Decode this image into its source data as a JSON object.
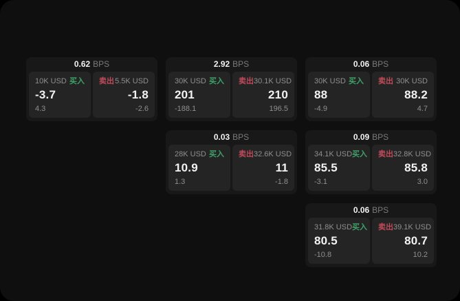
{
  "theme": {
    "window_bg": "#0f0f0f",
    "card_bg": "#181818",
    "panel_bg": "#242424",
    "text_primary": "#f2f2f2",
    "text_muted": "#8f8f8f",
    "text_faint": "#7a7a7a",
    "buy_color": "#3fa068",
    "sell_color": "#bf4b5a"
  },
  "labels": {
    "bps_suffix": "BPS",
    "buy": "买入",
    "sell": "卖出"
  },
  "cards": [
    {
      "bps": "0.62",
      "row": 1,
      "col": 1,
      "buy": {
        "size": "10K USD",
        "value": "-3.7",
        "delta": "4.3"
      },
      "sell": {
        "size": "5.5K USD",
        "value": "-1.8",
        "delta": "-2.6"
      }
    },
    {
      "bps": "2.92",
      "row": 1,
      "col": 2,
      "buy": {
        "size": "30K USD",
        "value": "201",
        "delta": "-188.1"
      },
      "sell": {
        "size": "30.1K USD",
        "value": "210",
        "delta": "196.5"
      }
    },
    {
      "bps": "0.06",
      "row": 1,
      "col": 3,
      "buy": {
        "size": "30K USD",
        "value": "88",
        "delta": "-4.9"
      },
      "sell": {
        "size": "30K USD",
        "value": "88.2",
        "delta": "4.7"
      }
    },
    {
      "bps": "0.03",
      "row": 2,
      "col": 2,
      "buy": {
        "size": "28K USD",
        "value": "10.9",
        "delta": "1.3"
      },
      "sell": {
        "size": "32.6K USD",
        "value": "11",
        "delta": "-1.8"
      }
    },
    {
      "bps": "0.09",
      "row": 2,
      "col": 3,
      "buy": {
        "size": "34.1K USD",
        "value": "85.5",
        "delta": "-3.1"
      },
      "sell": {
        "size": "32.8K USD",
        "value": "85.8",
        "delta": "3.0"
      }
    },
    {
      "bps": "0.06",
      "row": 3,
      "col": 3,
      "buy": {
        "size": "31.8K USD",
        "value": "80.5",
        "delta": "-10.8"
      },
      "sell": {
        "size": "39.1K USD",
        "value": "80.7",
        "delta": "10.2"
      }
    }
  ]
}
